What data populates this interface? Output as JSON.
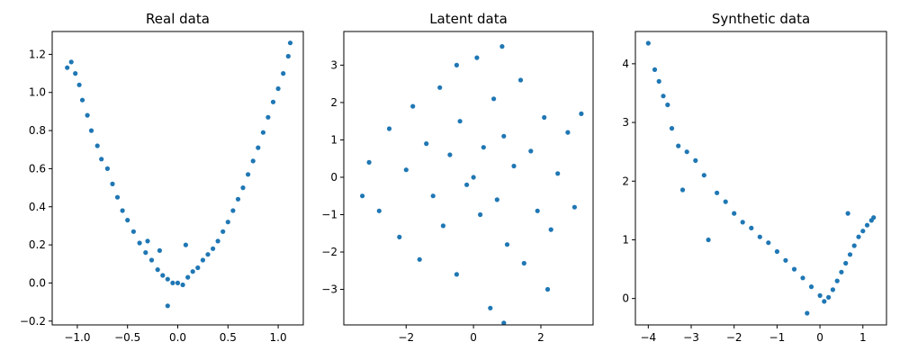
{
  "chart_data": [
    {
      "type": "scatter",
      "title": "Real data",
      "xlabel": "",
      "ylabel": "",
      "xlim": [
        -1.25,
        1.25
      ],
      "ylim": [
        -0.22,
        1.32
      ],
      "xticks": [
        -1.0,
        -0.5,
        0.0,
        0.5,
        1.0
      ],
      "xtick_labels": [
        "−1.0",
        "−0.5",
        "0.0",
        "0.5",
        "1.0"
      ],
      "yticks": [
        -0.2,
        0.0,
        0.2,
        0.4,
        0.6,
        0.8,
        1.0,
        1.2
      ],
      "ytick_labels": [
        "−0.2",
        "0.0",
        "0.2",
        "0.4",
        "0.6",
        "0.8",
        "1.0",
        "1.2"
      ],
      "color": "#1f77b4",
      "points": [
        [
          -1.1,
          1.13
        ],
        [
          -1.06,
          1.16
        ],
        [
          -1.02,
          1.1
        ],
        [
          -0.98,
          1.04
        ],
        [
          -0.95,
          0.96
        ],
        [
          -0.9,
          0.88
        ],
        [
          -0.86,
          0.8
        ],
        [
          -0.8,
          0.72
        ],
        [
          -0.76,
          0.65
        ],
        [
          -0.7,
          0.6
        ],
        [
          -0.65,
          0.52
        ],
        [
          -0.6,
          0.45
        ],
        [
          -0.55,
          0.38
        ],
        [
          -0.5,
          0.33
        ],
        [
          -0.44,
          0.27
        ],
        [
          -0.38,
          0.21
        ],
        [
          -0.32,
          0.16
        ],
        [
          -0.26,
          0.12
        ],
        [
          -0.2,
          0.07
        ],
        [
          -0.15,
          0.04
        ],
        [
          -0.1,
          0.02
        ],
        [
          -0.05,
          0.0
        ],
        [
          0.0,
          0.0
        ],
        [
          0.05,
          -0.01
        ],
        [
          0.1,
          0.03
        ],
        [
          0.15,
          0.06
        ],
        [
          0.2,
          0.08
        ],
        [
          0.25,
          0.12
        ],
        [
          0.3,
          0.15
        ],
        [
          0.35,
          0.18
        ],
        [
          0.4,
          0.22
        ],
        [
          0.45,
          0.27
        ],
        [
          0.5,
          0.32
        ],
        [
          0.55,
          0.38
        ],
        [
          0.6,
          0.44
        ],
        [
          0.65,
          0.5
        ],
        [
          0.7,
          0.57
        ],
        [
          0.75,
          0.64
        ],
        [
          0.8,
          0.71
        ],
        [
          0.85,
          0.79
        ],
        [
          0.9,
          0.87
        ],
        [
          0.95,
          0.95
        ],
        [
          1.0,
          1.02
        ],
        [
          1.05,
          1.1
        ],
        [
          1.1,
          1.19
        ],
        [
          1.12,
          1.26
        ],
        [
          -0.3,
          0.22
        ],
        [
          -0.1,
          -0.12
        ],
        [
          0.08,
          0.2
        ],
        [
          -0.18,
          0.17
        ]
      ]
    },
    {
      "type": "scatter",
      "title": "Latent data",
      "xlabel": "",
      "ylabel": "",
      "xlim": [
        -3.85,
        3.55
      ],
      "ylim": [
        -3.95,
        3.9
      ],
      "xticks": [
        -2,
        0,
        2
      ],
      "xtick_labels": [
        "−2",
        "0",
        "2"
      ],
      "yticks": [
        -3,
        -2,
        -1,
        0,
        1,
        2,
        3
      ],
      "ytick_labels": [
        "−3",
        "−2",
        "−1",
        "0",
        "1",
        "2",
        "3"
      ],
      "color": "#1f77b4",
      "points": [
        [
          -3.1,
          0.4
        ],
        [
          -2.8,
          -0.9
        ],
        [
          -2.5,
          1.3
        ],
        [
          -2.2,
          -1.6
        ],
        [
          -2.0,
          0.2
        ],
        [
          -1.8,
          1.9
        ],
        [
          -1.6,
          -2.2
        ],
        [
          -1.4,
          0.9
        ],
        [
          -1.2,
          -0.5
        ],
        [
          -1.0,
          2.4
        ],
        [
          -0.9,
          -1.3
        ],
        [
          -0.7,
          0.6
        ],
        [
          -0.5,
          -2.6
        ],
        [
          -0.4,
          1.5
        ],
        [
          -0.2,
          -0.2
        ],
        [
          0.0,
          0.0
        ],
        [
          0.1,
          3.2
        ],
        [
          0.2,
          -1.0
        ],
        [
          0.3,
          0.8
        ],
        [
          0.5,
          -3.5
        ],
        [
          0.6,
          2.1
        ],
        [
          0.7,
          -0.6
        ],
        [
          0.9,
          1.1
        ],
        [
          1.0,
          -1.8
        ],
        [
          1.2,
          0.3
        ],
        [
          1.4,
          2.6
        ],
        [
          1.5,
          -2.3
        ],
        [
          1.7,
          0.7
        ],
        [
          1.9,
          -0.9
        ],
        [
          2.1,
          1.6
        ],
        [
          2.3,
          -1.4
        ],
        [
          2.5,
          0.1
        ],
        [
          2.8,
          1.2
        ],
        [
          3.0,
          -0.8
        ],
        [
          3.2,
          1.7
        ],
        [
          0.85,
          3.5
        ],
        [
          0.9,
          -3.9
        ],
        [
          -3.3,
          -0.5
        ],
        [
          -0.5,
          3.0
        ],
        [
          2.2,
          -3.0
        ]
      ]
    },
    {
      "type": "scatter",
      "title": "Synthetic data",
      "xlabel": "",
      "ylabel": "",
      "xlim": [
        -4.3,
        1.55
      ],
      "ylim": [
        -0.45,
        4.55
      ],
      "xticks": [
        -4,
        -3,
        -2,
        -1,
        0,
        1
      ],
      "xtick_labels": [
        "−4",
        "−3",
        "−2",
        "−1",
        "0",
        "1"
      ],
      "yticks": [
        0,
        1,
        2,
        3,
        4
      ],
      "ytick_labels": [
        "0",
        "1",
        "2",
        "3",
        "4"
      ],
      "color": "#1f77b4",
      "points": [
        [
          -4.0,
          4.35
        ],
        [
          -3.85,
          3.9
        ],
        [
          -3.75,
          3.7
        ],
        [
          -3.65,
          3.45
        ],
        [
          -3.55,
          3.3
        ],
        [
          -3.45,
          2.9
        ],
        [
          -3.3,
          2.6
        ],
        [
          -3.1,
          2.5
        ],
        [
          -2.9,
          2.35
        ],
        [
          -2.7,
          2.1
        ],
        [
          -2.4,
          1.8
        ],
        [
          -2.2,
          1.65
        ],
        [
          -2.0,
          1.45
        ],
        [
          -1.8,
          1.3
        ],
        [
          -1.6,
          1.2
        ],
        [
          -1.4,
          1.05
        ],
        [
          -1.2,
          0.95
        ],
        [
          -1.0,
          0.8
        ],
        [
          -0.8,
          0.65
        ],
        [
          -0.6,
          0.5
        ],
        [
          -0.4,
          0.35
        ],
        [
          -0.2,
          0.2
        ],
        [
          0.0,
          0.05
        ],
        [
          0.1,
          -0.05
        ],
        [
          0.2,
          0.02
        ],
        [
          0.3,
          0.15
        ],
        [
          0.4,
          0.3
        ],
        [
          0.5,
          0.45
        ],
        [
          0.6,
          0.6
        ],
        [
          0.7,
          0.75
        ],
        [
          0.8,
          0.9
        ],
        [
          0.9,
          1.05
        ],
        [
          1.0,
          1.15
        ],
        [
          1.1,
          1.25
        ],
        [
          1.2,
          1.33
        ],
        [
          1.25,
          1.38
        ],
        [
          -0.3,
          -0.25
        ],
        [
          -2.6,
          1.0
        ],
        [
          -3.2,
          1.85
        ],
        [
          0.65,
          1.45
        ]
      ]
    }
  ]
}
